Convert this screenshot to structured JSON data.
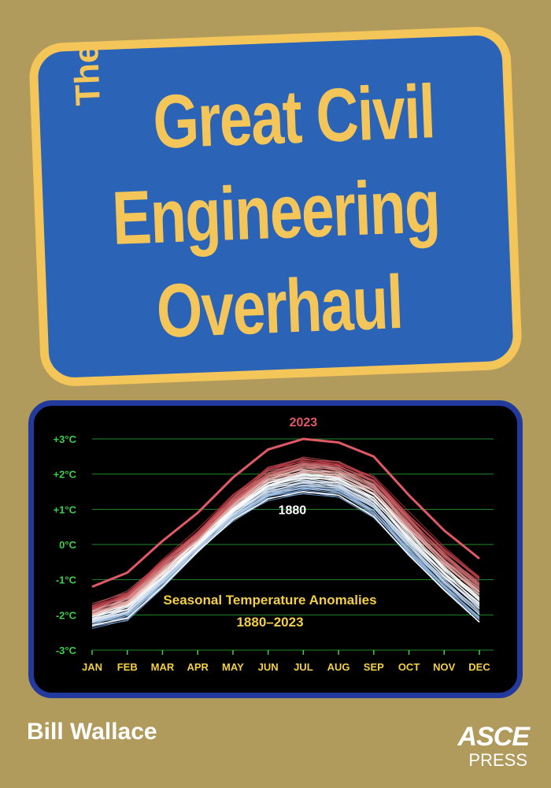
{
  "cover": {
    "title_small": "The",
    "title_line1": "Great Civil",
    "title_line2": "Engineering",
    "title_line3": "Overhaul",
    "author": "Bill Wallace",
    "publisher_line1": "ASCE",
    "publisher_line2": "PRESS",
    "colors": {
      "background": "#b09a5c",
      "title_box": "#2b63b6",
      "title_text": "#f4c659",
      "chart_frame": "#223a9b"
    }
  },
  "chart_data": {
    "type": "line",
    "title": "Seasonal Temperature Anomalies",
    "subtitle": "1880–2023",
    "categories": [
      "JAN",
      "FEB",
      "MAR",
      "APR",
      "MAY",
      "JUN",
      "JUL",
      "AUG",
      "SEP",
      "OCT",
      "NOV",
      "DEC"
    ],
    "y_ticks": [
      "+3°C",
      "+2°C",
      "+1°C",
      "0°C",
      "-1°C",
      "-2°C",
      "-3°C"
    ],
    "ylim": [
      -3,
      3
    ],
    "grid": true,
    "series": [
      {
        "name": "2023",
        "color": "#e05a66",
        "values": [
          -1.2,
          -0.8,
          0.1,
          0.9,
          1.9,
          2.7,
          3.0,
          2.9,
          2.5,
          1.4,
          0.4,
          -0.4
        ]
      },
      {
        "name": "1880",
        "color": "#ffffff",
        "values": [
          -2.3,
          -2.1,
          -1.2,
          -0.2,
          0.7,
          1.3,
          1.5,
          1.4,
          0.8,
          -0.3,
          -1.3,
          -2.2
        ]
      }
    ]
  }
}
